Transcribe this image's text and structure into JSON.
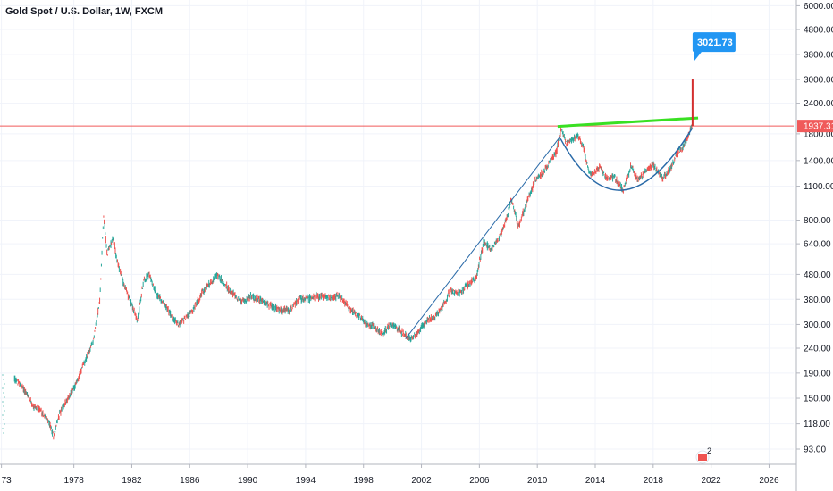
{
  "header": {
    "title": "Gold Spot / U.S. Dollar, 1W, FXCM"
  },
  "chart_data": {
    "type": "line",
    "title": "Gold Spot / U.S. Dollar, 1W, FXCM",
    "scale": "log",
    "x_ticks": [
      "73",
      "1978",
      "1982",
      "1986",
      "1990",
      "1994",
      "1998",
      "2002",
      "2006",
      "2010",
      "2014",
      "2018",
      "2022",
      "2026"
    ],
    "y_ticks": [
      "6000.00",
      "4800.00",
      "3800.00",
      "3000.00",
      "2400.00",
      "1800.00",
      "1400.00",
      "1100.00",
      "800.00",
      "640.00",
      "480.00",
      "380.00",
      "300.00",
      "240.00",
      "190.00",
      "150.00",
      "118.00",
      "93.00"
    ],
    "xlim": [
      1972.9,
      2027.7
    ],
    "ylim": [
      75,
      6200
    ],
    "series": [
      {
        "values": [
          [
            1973.9,
            180
          ],
          [
            1974.5,
            165
          ],
          [
            1975.2,
            140
          ],
          [
            1975.8,
            132
          ],
          [
            1976.3,
            118
          ],
          [
            1976.6,
            105
          ],
          [
            1977.0,
            130
          ],
          [
            1977.6,
            150
          ],
          [
            1978.1,
            170
          ],
          [
            1978.8,
            215
          ],
          [
            1979.3,
            250
          ],
          [
            1979.8,
            380
          ],
          [
            1980.05,
            850
          ],
          [
            1980.3,
            580
          ],
          [
            1980.7,
            680
          ],
          [
            1981.0,
            540
          ],
          [
            1981.5,
            430
          ],
          [
            1982.0,
            360
          ],
          [
            1982.4,
            310
          ],
          [
            1982.8,
            450
          ],
          [
            1983.2,
            480
          ],
          [
            1983.7,
            400
          ],
          [
            1984.3,
            360
          ],
          [
            1984.8,
            320
          ],
          [
            1985.2,
            300
          ],
          [
            1985.7,
            320
          ],
          [
            1986.2,
            340
          ],
          [
            1986.8,
            400
          ],
          [
            1987.4,
            440
          ],
          [
            1987.9,
            480
          ],
          [
            1988.5,
            430
          ],
          [
            1989.0,
            400
          ],
          [
            1989.6,
            370
          ],
          [
            1990.2,
            390
          ],
          [
            1990.8,
            380
          ],
          [
            1991.5,
            360
          ],
          [
            1992.2,
            345
          ],
          [
            1992.9,
            340
          ],
          [
            1993.5,
            380
          ],
          [
            1994.2,
            385
          ],
          [
            1995.0,
            390
          ],
          [
            1995.8,
            385
          ],
          [
            1996.3,
            395
          ],
          [
            1997.0,
            350
          ],
          [
            1997.6,
            330
          ],
          [
            1998.2,
            300
          ],
          [
            1998.8,
            295
          ],
          [
            1999.3,
            270
          ],
          [
            1999.8,
            300
          ],
          [
            2000.3,
            290
          ],
          [
            2000.9,
            270
          ],
          [
            2001.3,
            262
          ],
          [
            2001.8,
            280
          ],
          [
            2002.3,
            310
          ],
          [
            2002.9,
            320
          ],
          [
            2003.5,
            360
          ],
          [
            2004.0,
            410
          ],
          [
            2004.6,
            400
          ],
          [
            2005.1,
            430
          ],
          [
            2005.8,
            470
          ],
          [
            2006.3,
            650
          ],
          [
            2006.8,
            610
          ],
          [
            2007.3,
            660
          ],
          [
            2007.9,
            820
          ],
          [
            2008.2,
            980
          ],
          [
            2008.7,
            750
          ],
          [
            2009.2,
            920
          ],
          [
            2009.8,
            1150
          ],
          [
            2010.4,
            1250
          ],
          [
            2010.9,
            1400
          ],
          [
            2011.3,
            1500
          ],
          [
            2011.65,
            1900
          ],
          [
            2012.0,
            1650
          ],
          [
            2012.4,
            1700
          ],
          [
            2012.8,
            1780
          ],
          [
            2013.2,
            1580
          ],
          [
            2013.55,
            1250
          ],
          [
            2013.9,
            1240
          ],
          [
            2014.3,
            1320
          ],
          [
            2014.8,
            1180
          ],
          [
            2015.3,
            1200
          ],
          [
            2015.9,
            1060
          ],
          [
            2016.5,
            1340
          ],
          [
            2016.95,
            1150
          ],
          [
            2017.5,
            1280
          ],
          [
            2018.0,
            1340
          ],
          [
            2018.65,
            1180
          ],
          [
            2019.2,
            1300
          ],
          [
            2019.7,
            1520
          ],
          [
            2020.0,
            1560
          ],
          [
            2020.3,
            1700
          ],
          [
            2020.6,
            1900
          ],
          [
            2020.7,
            1937.31
          ]
        ]
      }
    ],
    "annotations": {
      "price_line_label": "1937.31",
      "price_line_value": 1937.31,
      "target_label": "3021.73",
      "target_value": 3021.73,
      "resistance_line": [
        [
          2011.4,
          1930
        ],
        [
          2021.1,
          2090
        ]
      ],
      "trend_line": [
        [
          2000.9,
          262
        ],
        [
          2011.6,
          1760
        ]
      ],
      "cup_curve": [
        [
          2011.6,
          1720
        ],
        [
          2015.9,
          1060
        ],
        [
          2020.7,
          1900
        ]
      ],
      "event_badge": "2"
    },
    "colors": {
      "up": "#26a69a",
      "down": "#ef5350",
      "price_line": "#f05a5a",
      "resistance": "#39e022",
      "trend": "#2a6aa8",
      "cup": "#2a6aa8",
      "target_label_bg": "#2196f3",
      "arrow": "#d32f2f"
    }
  }
}
